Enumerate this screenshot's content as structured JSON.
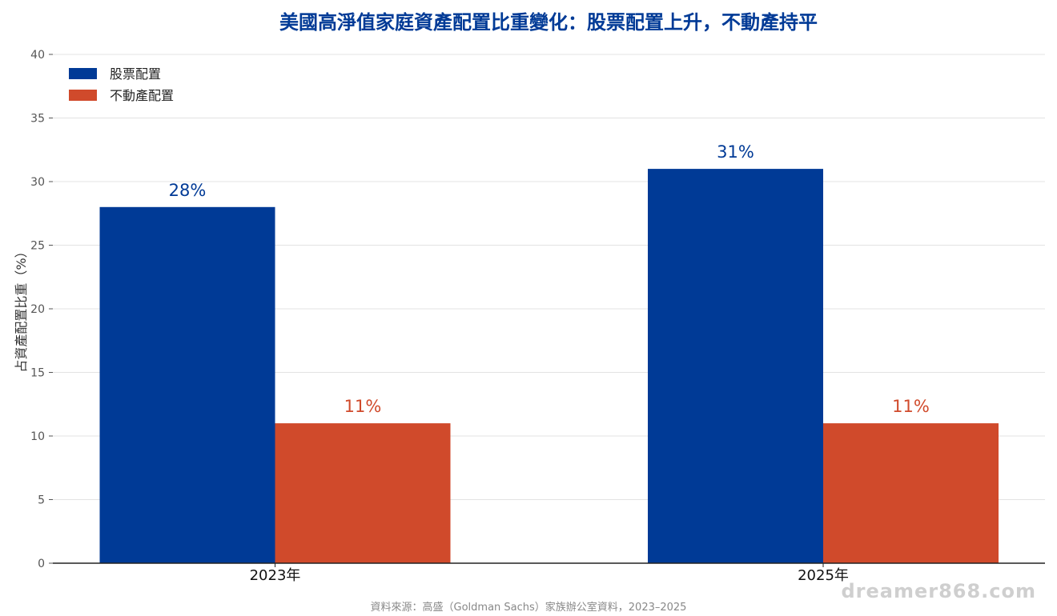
{
  "chart_data": {
    "type": "bar",
    "title": "美國高淨值家庭資產配置比重變化：股票配置上升，不動產持平",
    "ylabel": "占資產配置比重（%）",
    "xlabel": "",
    "categories": [
      "2023年",
      "2025年"
    ],
    "series": [
      {
        "name": "股票配置",
        "values": [
          28,
          31
        ],
        "color": "#003A96",
        "labels": [
          "28%",
          "31%"
        ]
      },
      {
        "name": "不動產配置",
        "values": [
          11,
          11
        ],
        "color": "#D04A2B",
        "labels": [
          "11%",
          "11%"
        ]
      }
    ],
    "ylim": [
      0,
      40
    ],
    "yticks": [
      0,
      5,
      10,
      15,
      20,
      25,
      30,
      35,
      40
    ],
    "grid": true,
    "legend_position": "top-left",
    "title_color": "#003A96",
    "source": "資料來源：高盛（Goldman Sachs）家族辦公室資料，2023–2025",
    "watermark": "dreamer868.com"
  }
}
